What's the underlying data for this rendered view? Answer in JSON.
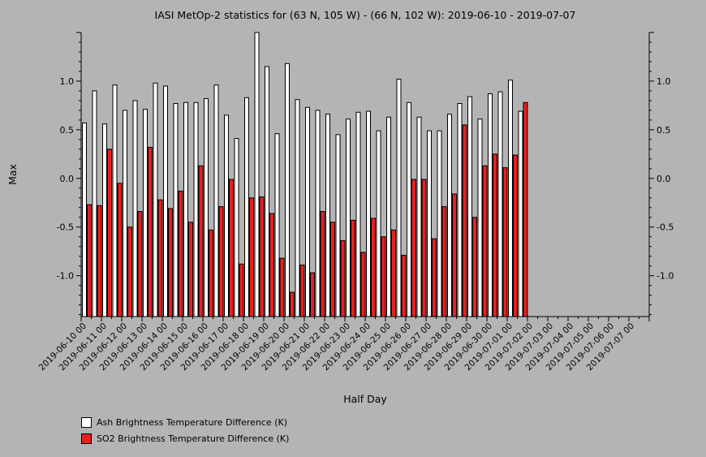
{
  "chart_data": {
    "type": "bar",
    "title": "IASI MetOp-2 statistics for (63 N, 105 W) - (66 N, 102 W): 2019-06-10 - 2019-07-07",
    "xlabel": "Half Day",
    "ylabel": "Max",
    "ylim": [
      -1.42,
      1.5
    ],
    "yticks": [
      "1.0",
      "0.5",
      "0.0",
      "-0.5",
      "-1.0"
    ],
    "yticks_values": [
      1.0,
      0.5,
      0.0,
      -0.5,
      -1.0
    ],
    "x_tick_labels": [
      "2019-06-10 00",
      "2019-06-11 00",
      "2019-06-12 00",
      "2019-06-13 00",
      "2019-06-14 00",
      "2019-06-15 00",
      "2019-06-16 00",
      "2019-06-17 00",
      "2019-06-18 00",
      "2019-06-19 00",
      "2019-06-20 00",
      "2019-06-21 00",
      "2019-06-22 00",
      "2019-06-23 00",
      "2019-06-24 00",
      "2019-06-25 00",
      "2019-06-26 00",
      "2019-06-27 00",
      "2019-06-28 00",
      "2019-06-29 00",
      "2019-06-30 00",
      "2019-07-01 00",
      "2019-07-02 00",
      "2019-07-03 00",
      "2019-07-04 00",
      "2019-07-05 00",
      "2019-07-06 00",
      "2019-07-07 00"
    ],
    "series": [
      {
        "name": "Ash Brightness Temperature Difference (K)",
        "color": "#ffffff",
        "values": [
          0.57,
          0.9,
          0.56,
          0.96,
          0.7,
          0.8,
          0.71,
          0.98,
          0.95,
          0.77,
          0.78,
          0.78,
          0.82,
          0.96,
          0.65,
          0.41,
          0.83,
          1.5,
          1.15,
          0.46,
          1.18,
          0.81,
          0.73,
          0.7,
          0.66,
          0.45,
          0.61,
          0.68,
          0.69,
          0.49,
          0.63,
          1.02,
          0.78,
          0.63,
          0.49,
          0.49,
          0.66,
          0.77,
          0.84,
          0.61,
          0.87,
          0.89,
          1.01,
          0.69
        ]
      },
      {
        "name": "SO2 Brightness Temperature Difference (K)",
        "color": "#e82020",
        "values": [
          -0.27,
          -0.28,
          0.3,
          -0.05,
          -0.5,
          -0.34,
          0.32,
          -0.22,
          -0.31,
          -0.13,
          -0.45,
          0.13,
          -0.53,
          -0.29,
          -0.01,
          -0.88,
          -0.2,
          -0.19,
          -0.36,
          -0.82,
          -1.17,
          -0.89,
          -0.97,
          -0.34,
          -0.45,
          -0.64,
          -0.43,
          -0.76,
          -0.41,
          -0.6,
          -0.53,
          -0.79,
          -0.01,
          -0.01,
          -0.62,
          -0.29,
          -0.16,
          0.55,
          -0.4,
          0.13,
          0.25,
          0.11,
          0.24,
          0.78
        ]
      }
    ],
    "legend_position": "bottom-left",
    "grid": false
  }
}
